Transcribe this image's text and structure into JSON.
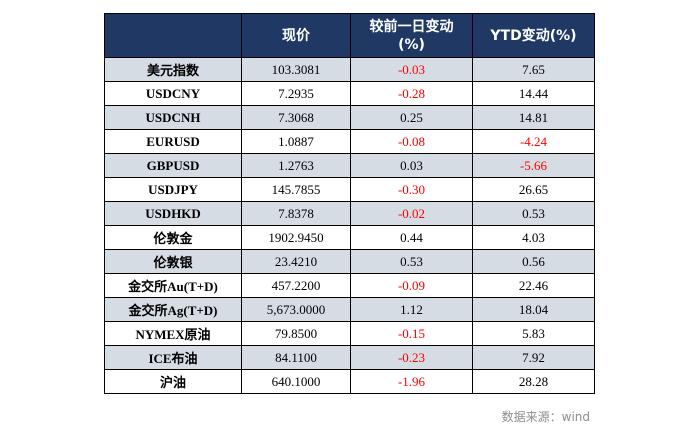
{
  "header": {
    "col0": "",
    "col1": "现价",
    "col2_line1": "较前一日变动",
    "col2_line2": "(%)",
    "col3": "YTD变动(%)"
  },
  "rows": [
    {
      "name": "美元指数",
      "price": "103.3081",
      "day": "-0.03",
      "ytd": "7.65"
    },
    {
      "name": "USDCNY",
      "price": "7.2935",
      "day": "-0.28",
      "ytd": "14.44"
    },
    {
      "name": "USDCNH",
      "price": "7.3068",
      "day": "0.25",
      "ytd": "14.81"
    },
    {
      "name": "EURUSD",
      "price": "1.0887",
      "day": "-0.08",
      "ytd": "-4.24"
    },
    {
      "name": "GBPUSD",
      "price": "1.2763",
      "day": "0.03",
      "ytd": "-5.66"
    },
    {
      "name": "USDJPY",
      "price": "145.7855",
      "day": "-0.30",
      "ytd": "26.65"
    },
    {
      "name": "USDHKD",
      "price": "7.8378",
      "day": "-0.02",
      "ytd": "0.53"
    },
    {
      "name": "伦敦金",
      "price": "1902.9450",
      "day": "0.44",
      "ytd": "4.03"
    },
    {
      "name": "伦敦银",
      "price": "23.4210",
      "day": "0.53",
      "ytd": "0.56"
    },
    {
      "name": "金交所Au(T+D)",
      "price": "457.2200",
      "day": "-0.09",
      "ytd": "22.46"
    },
    {
      "name": "金交所Ag(T+D)",
      "price": "5,673.0000",
      "day": "1.12",
      "ytd": "18.04"
    },
    {
      "name": "NYMEX原油",
      "price": "79.8500",
      "day": "-0.15",
      "ytd": "5.83"
    },
    {
      "name": "ICE布油",
      "price": "84.1100",
      "day": "-0.23",
      "ytd": "7.92"
    },
    {
      "name": "沪油",
      "price": "640.1000",
      "day": "-1.96",
      "ytd": "28.28"
    }
  ],
  "source": "数据来源：wind",
  "colors": {
    "header_bg": "#1f3864",
    "shade": "#d6dce4",
    "negative": "#ff0000"
  }
}
